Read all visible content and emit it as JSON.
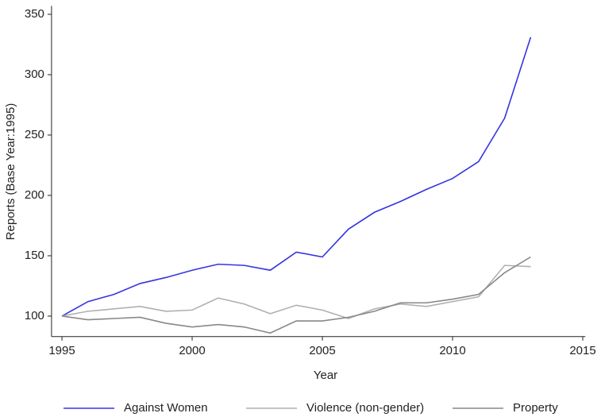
{
  "chart_data": {
    "type": "line",
    "xlabel": "Year",
    "ylabel": "Reports (Base Year:1995)",
    "x": [
      1995,
      1996,
      1997,
      1998,
      1999,
      2000,
      2001,
      2002,
      2003,
      2004,
      2005,
      2006,
      2007,
      2008,
      2009,
      2010,
      2011,
      2012,
      2013
    ],
    "series": [
      {
        "name": "Against Women",
        "color": "#3535e0",
        "values": [
          100,
          112,
          118,
          127,
          132,
          138,
          143,
          142,
          138,
          153,
          149,
          172,
          186,
          195,
          205,
          214,
          228,
          264,
          331
        ]
      },
      {
        "name": "Violence (non-gender)",
        "color": "#b0b0b0",
        "values": [
          100,
          104,
          106,
          108,
          104,
          105,
          115,
          110,
          102,
          109,
          105,
          98,
          106,
          110,
          108,
          112,
          116,
          142,
          141
        ]
      },
      {
        "name": "Property",
        "color": "#888888",
        "values": [
          100,
          97,
          98,
          99,
          94,
          91,
          93,
          91,
          86,
          96,
          96,
          99,
          104,
          111,
          111,
          114,
          118,
          136,
          149
        ]
      }
    ],
    "xlim": [
      1994.6,
      2015.1
    ],
    "xticks": [
      1995,
      2000,
      2005,
      2010,
      2015
    ],
    "ylim": [
      83,
      357
    ],
    "yticks": [
      100,
      150,
      200,
      250,
      300,
      350
    ],
    "legend": "bottom"
  }
}
